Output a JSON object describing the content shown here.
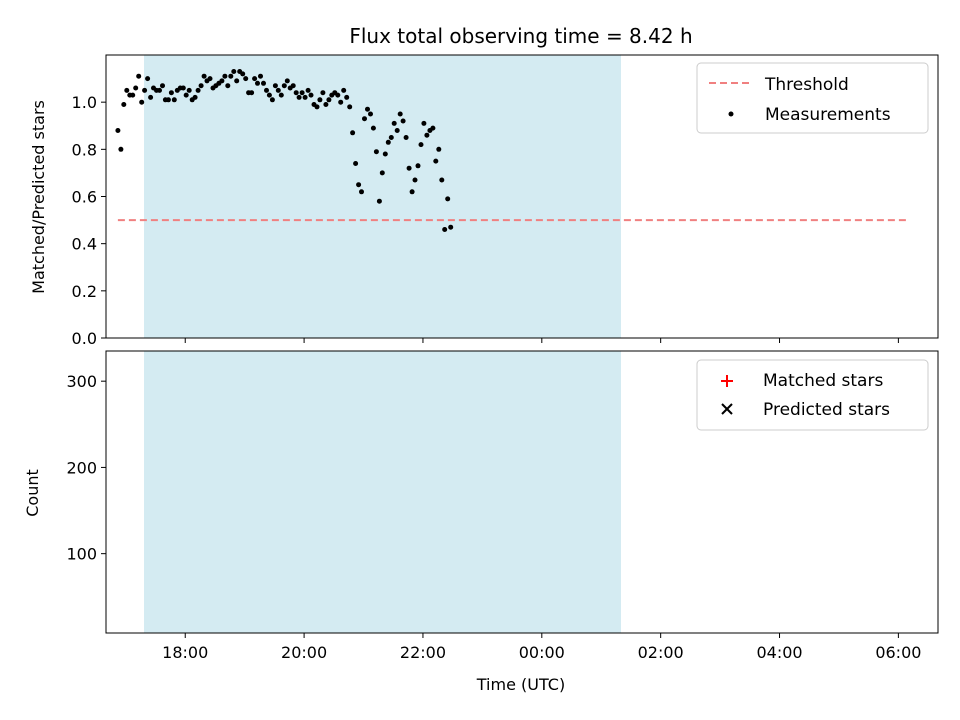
{
  "title": "Flux total observing time = 8.42 h",
  "chart_data": [
    {
      "type": "scatter",
      "ylabel": "Matched/Predicted stars",
      "xlabel": "",
      "xlim": [
        "16:40",
        "06:40"
      ],
      "ylim": [
        0,
        1.2
      ],
      "yticks": [
        "0.0",
        "0.2",
        "0.4",
        "0.6",
        "0.8",
        "1.0"
      ],
      "legend": "top-right",
      "observing_window": [
        "16:52",
        "01:17"
      ],
      "threshold": {
        "name": "Threshold",
        "value": 0.5,
        "x_range": [
          "16:52",
          "06:10"
        ],
        "color": "#f08080"
      },
      "measurements": {
        "name": "Measurements",
        "color": "#000000",
        "points": [
          [
            "16:52",
            0.88
          ],
          [
            "16:55",
            0.8
          ],
          [
            "16:58",
            0.99
          ],
          [
            "17:01",
            1.05
          ],
          [
            "17:04",
            1.03
          ],
          [
            "17:07",
            1.03
          ],
          [
            "17:10",
            1.06
          ],
          [
            "17:13",
            1.11
          ],
          [
            "17:16",
            1.0
          ],
          [
            "17:19",
            1.05
          ],
          [
            "17:22",
            1.1
          ],
          [
            "17:25",
            1.02
          ],
          [
            "17:28",
            1.06
          ],
          [
            "17:31",
            1.05
          ],
          [
            "17:34",
            1.05
          ],
          [
            "17:37",
            1.07
          ],
          [
            "17:40",
            1.01
          ],
          [
            "17:43",
            1.01
          ],
          [
            "17:46",
            1.04
          ],
          [
            "17:49",
            1.01
          ],
          [
            "17:52",
            1.05
          ],
          [
            "17:55",
            1.06
          ],
          [
            "17:58",
            1.06
          ],
          [
            "18:01",
            1.03
          ],
          [
            "18:04",
            1.05
          ],
          [
            "18:07",
            1.01
          ],
          [
            "18:10",
            1.02
          ],
          [
            "18:13",
            1.05
          ],
          [
            "18:16",
            1.07
          ],
          [
            "18:19",
            1.11
          ],
          [
            "18:22",
            1.09
          ],
          [
            "18:25",
            1.1
          ],
          [
            "18:28",
            1.06
          ],
          [
            "18:31",
            1.07
          ],
          [
            "18:34",
            1.08
          ],
          [
            "18:37",
            1.09
          ],
          [
            "18:40",
            1.11
          ],
          [
            "18:43",
            1.07
          ],
          [
            "18:46",
            1.11
          ],
          [
            "18:49",
            1.13
          ],
          [
            "18:52",
            1.09
          ],
          [
            "18:55",
            1.13
          ],
          [
            "18:58",
            1.12
          ],
          [
            "19:01",
            1.1
          ],
          [
            "19:04",
            1.04
          ],
          [
            "19:07",
            1.04
          ],
          [
            "19:10",
            1.1
          ],
          [
            "19:13",
            1.08
          ],
          [
            "19:16",
            1.11
          ],
          [
            "19:19",
            1.08
          ],
          [
            "19:22",
            1.05
          ],
          [
            "19:25",
            1.03
          ],
          [
            "19:28",
            1.01
          ],
          [
            "19:31",
            1.07
          ],
          [
            "19:34",
            1.05
          ],
          [
            "19:37",
            1.03
          ],
          [
            "19:40",
            1.07
          ],
          [
            "19:43",
            1.09
          ],
          [
            "19:46",
            1.06
          ],
          [
            "19:49",
            1.07
          ],
          [
            "19:52",
            1.04
          ],
          [
            "19:55",
            1.02
          ],
          [
            "19:58",
            1.04
          ],
          [
            "20:01",
            1.02
          ],
          [
            "20:04",
            1.05
          ],
          [
            "20:07",
            1.03
          ],
          [
            "20:10",
            0.99
          ],
          [
            "20:13",
            0.98
          ],
          [
            "20:16",
            1.01
          ],
          [
            "20:19",
            1.04
          ],
          [
            "20:22",
            0.99
          ],
          [
            "20:25",
            1.01
          ],
          [
            "20:28",
            1.03
          ],
          [
            "20:31",
            1.04
          ],
          [
            "20:34",
            1.03
          ],
          [
            "20:37",
            1.0
          ],
          [
            "20:40",
            1.05
          ],
          [
            "20:43",
            1.02
          ],
          [
            "20:46",
            0.98
          ],
          [
            "20:49",
            0.87
          ],
          [
            "20:52",
            0.74
          ],
          [
            "20:55",
            0.65
          ],
          [
            "20:58",
            0.62
          ],
          [
            "21:01",
            0.93
          ],
          [
            "21:04",
            0.97
          ],
          [
            "21:07",
            0.95
          ],
          [
            "21:10",
            0.89
          ],
          [
            "21:13",
            0.79
          ],
          [
            "21:16",
            0.58
          ],
          [
            "21:19",
            0.7
          ],
          [
            "21:22",
            0.78
          ],
          [
            "21:25",
            0.83
          ],
          [
            "21:28",
            0.85
          ],
          [
            "21:31",
            0.91
          ],
          [
            "21:34",
            0.88
          ],
          [
            "21:37",
            0.95
          ],
          [
            "21:40",
            0.92
          ],
          [
            "21:43",
            0.85
          ],
          [
            "21:46",
            0.72
          ],
          [
            "21:49",
            0.62
          ],
          [
            "21:52",
            0.67
          ],
          [
            "21:55",
            0.73
          ],
          [
            "21:58",
            0.82
          ],
          [
            "22:01",
            0.91
          ],
          [
            "22:04",
            0.86
          ],
          [
            "22:07",
            0.88
          ],
          [
            "22:10",
            0.89
          ],
          [
            "22:13",
            0.75
          ],
          [
            "22:16",
            0.8
          ],
          [
            "22:19",
            0.67
          ],
          [
            "22:22",
            0.46
          ],
          [
            "22:25",
            0.59
          ],
          [
            "22:28",
            0.47
          ]
        ]
      }
    },
    {
      "type": "scatter",
      "ylabel": "Count",
      "xlabel": "Time (UTC)",
      "xlim": [
        "16:40",
        "06:40"
      ],
      "ylim": [
        8,
        335
      ],
      "yticks": [
        "100",
        "200",
        "300"
      ],
      "xticks": [
        "18:00",
        "20:00",
        "22:00",
        "00:00",
        "02:00",
        "04:00",
        "06:00"
      ],
      "legend": "top-right",
      "observing_window": [
        "16:52",
        "01:17"
      ],
      "series": [
        {
          "name": "Matched stars",
          "marker": "plus",
          "color": "#ff0000"
        },
        {
          "name": "Predicted stars",
          "marker": "x",
          "color": "#000000"
        }
      ]
    }
  ]
}
